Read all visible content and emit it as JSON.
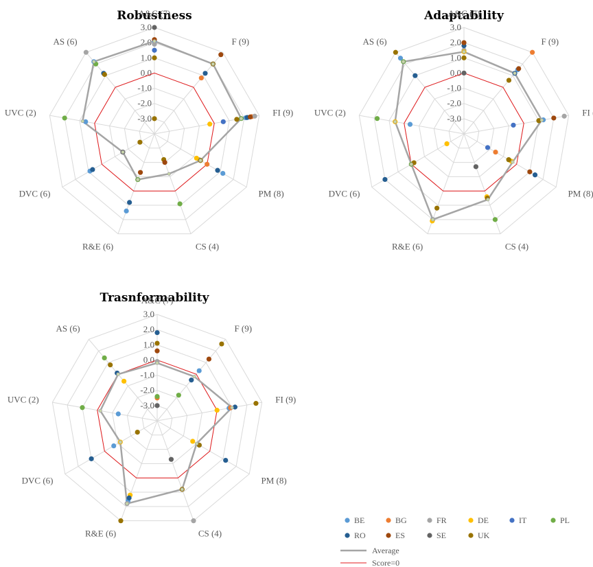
{
  "colors": {
    "BE": "#5b9bd5",
    "BG": "#ed7d31",
    "FR": "#a5a5a5",
    "DE": "#ffc000",
    "IT": "#4472c4",
    "PL": "#70ad47",
    "RO": "#255e91",
    "ES": "#9e480e",
    "SE": "#636363",
    "UK": "#997300",
    "average": "#a5a5a5",
    "score_zero": "#e31a1c",
    "grid": "#d9d9d9"
  },
  "legend": {
    "countries": [
      "BE",
      "BG",
      "FR",
      "DE",
      "IT",
      "PL",
      "RO",
      "ES",
      "SE",
      "UK"
    ],
    "average_label": "Average",
    "score_zero_label": "Score=0"
  },
  "chart_data": [
    {
      "type": "radar",
      "title": "Robustness",
      "axes": [
        "A&C (7)",
        "F (9)",
        "FI (9)",
        "PM (8)",
        "CS (4)",
        "R&E (6)",
        "DVC (6)",
        "UVC (2)",
        "AS (6)"
      ],
      "r_ticks": [
        "3.0",
        "2.0",
        "1.0",
        "0.0",
        "-1.0",
        "-2.0",
        "-3.0"
      ],
      "rlim": [
        -4,
        3
      ],
      "average": [
        2.1,
        2.0,
        1.8,
        -0.5,
        -1.2,
        -0.8,
        -1.6,
        0.8,
        2.2
      ],
      "score_zero": [
        0,
        0,
        0,
        0,
        0,
        0,
        0,
        0,
        0
      ],
      "points": [
        {
          "country": "BE",
          "values": [
            2.1,
            2.0,
            2.1,
            1.2,
            null,
            1.4,
            0.9,
            0.6,
            2.2
          ]
        },
        {
          "country": "BG",
          "values": [
            null,
            0.8,
            2.5,
            0.0,
            null,
            null,
            null,
            null,
            null
          ]
        },
        {
          "country": "FR",
          "values": [
            1.9,
            null,
            2.7,
            -0.6,
            null,
            -0.8,
            null,
            null,
            3.0
          ]
        },
        {
          "country": "DE",
          "values": [
            null,
            null,
            -0.3,
            -0.8,
            null,
            null,
            null,
            null,
            null
          ]
        },
        {
          "country": "IT",
          "values": [
            1.5,
            null,
            0.6,
            null,
            null,
            null,
            null,
            null,
            null
          ]
        },
        {
          "country": "PL",
          "values": [
            null,
            null,
            1.8,
            -0.5,
            0.9,
            -0.8,
            null,
            2.0,
            2.0
          ]
        },
        {
          "country": "RO",
          "values": [
            null,
            1.2,
            2.2,
            0.8,
            null,
            0.8,
            0.7,
            null,
            1.2
          ]
        },
        {
          "country": "ES",
          "values": [
            2.2,
            2.8,
            2.4,
            null,
            null,
            null,
            null,
            null,
            null
          ]
        },
        {
          "country": "SE",
          "values": [
            3.0,
            null,
            null,
            null,
            null,
            null,
            -1.6,
            null,
            null
          ]
        },
        {
          "country": "UK",
          "values": [
            1.0,
            2.0,
            1.5,
            -0.5,
            -2.2,
            null,
            -2.9,
            null,
            1.1
          ]
        },
        {
          "country": "SE",
          "values": [
            null,
            null,
            null,
            null,
            null,
            null,
            null,
            null,
            null
          ]
        },
        {
          "country": "ES",
          "values": [
            null,
            null,
            null,
            null,
            null,
            null,
            null,
            null,
            null
          ]
        },
        {
          "country": "UK",
          "values": [
            -3.0,
            null,
            null,
            null,
            null,
            null,
            null,
            null,
            null
          ]
        },
        {
          "country": "ES",
          "values": [
            null,
            null,
            null,
            null,
            -2.0,
            -1.3,
            null,
            null,
            null
          ]
        }
      ]
    },
    {
      "type": "radar",
      "title": "Adaptability",
      "axes": [
        "A&C (7)",
        "F (9)",
        "FI (9)",
        "PM (8)",
        "CS (4)",
        "R&E (6)",
        "DVC (6)",
        "UVC (2)",
        "AS (6)"
      ],
      "r_ticks": [
        "3.0",
        "2.0",
        "1.0",
        "0.0",
        "-1.0",
        "-2.0",
        "-3.0"
      ],
      "rlim": [
        -4,
        3
      ],
      "average": [
        1.4,
        1.2,
        1.2,
        -0.3,
        0.6,
        2.0,
        0.0,
        0.6,
        2.2
      ],
      "score_zero": [
        0,
        0,
        0,
        0,
        0,
        0,
        0,
        0,
        0
      ],
      "points": [
        {
          "country": "BE",
          "values": [
            null,
            1.5,
            1.3,
            null,
            null,
            2.0,
            null,
            -0.4,
            2.5
          ]
        },
        {
          "country": "BG",
          "values": [
            null,
            3.0,
            null,
            -1.6,
            null,
            null,
            null,
            null,
            null
          ]
        },
        {
          "country": "FR",
          "values": [
            1.5,
            null,
            2.7,
            null,
            null,
            2.0,
            null,
            null,
            null
          ]
        },
        {
          "country": "DE",
          "values": [
            1.4,
            null,
            null,
            -0.4,
            0.4,
            2.1,
            -2.7,
            0.6,
            null
          ]
        },
        {
          "country": "IT",
          "values": [
            null,
            null,
            -0.7,
            -2.2,
            null,
            null,
            null,
            null,
            null
          ]
        },
        {
          "country": "PL",
          "values": [
            null,
            null,
            1.0,
            -0.6,
            2.0,
            null,
            0.0,
            1.8,
            2.2
          ]
        },
        {
          "country": "RO",
          "values": [
            1.8,
            1.2,
            null,
            1.4,
            null,
            null,
            2.0,
            null,
            1.0
          ]
        },
        {
          "country": "ES",
          "values": [
            2.0,
            1.6,
            2.0,
            1.0,
            null,
            null,
            null,
            null,
            null
          ]
        },
        {
          "country": "SE",
          "values": [
            0.0,
            null,
            null,
            null,
            -1.7,
            null,
            null,
            null,
            null
          ]
        },
        {
          "country": "UK",
          "values": [
            1.0,
            0.6,
            1.0,
            -0.6,
            0.5,
            1.2,
            -0.2,
            null,
            3.0
          ]
        }
      ]
    },
    {
      "type": "radar",
      "title": "Trasnformability",
      "axes": [
        "A&C (7)",
        "F (9)",
        "FI (9)",
        "PM (8)",
        "CS (4)",
        "R&E (6)",
        "DVC (6)",
        "UVC (2)",
        "AS (6)"
      ],
      "r_ticks": [
        "3.0",
        "2.0",
        "1.0",
        "0.0",
        "-1.0",
        "-2.0",
        "-3.0"
      ],
      "rlim": [
        -4,
        3
      ],
      "average": [
        -0.2,
        -0.2,
        1.0,
        -1.0,
        0.8,
        1.8,
        -1.2,
        -0.2,
        0.0
      ],
      "score_zero": [
        0,
        0,
        0,
        0,
        0,
        0,
        0,
        0,
        0
      ],
      "points": [
        {
          "country": "BE",
          "values": [
            null,
            0.3,
            0.8,
            -0.8,
            null,
            1.6,
            -0.7,
            -1.4,
            null
          ]
        },
        {
          "country": "BG",
          "values": [
            null,
            null,
            0.9,
            null,
            null,
            null,
            null,
            null,
            null
          ]
        },
        {
          "country": "FR",
          "values": [
            -0.1,
            null,
            null,
            null,
            3.0,
            1.8,
            null,
            null,
            null
          ]
        },
        {
          "country": "DE",
          "values": [
            null,
            null,
            0.0,
            -1.3,
            null,
            1.2,
            -1.2,
            null,
            -0.6
          ]
        },
        {
          "country": "IT",
          "values": [
            null,
            null,
            null,
            null,
            null,
            null,
            null,
            null,
            null
          ]
        },
        {
          "country": "PL",
          "values": [
            null,
            -1.8,
            null,
            null,
            null,
            null,
            null,
            1.0,
            1.4
          ]
        },
        {
          "country": "RO",
          "values": [
            1.8,
            -0.5,
            1.2,
            1.2,
            null,
            1.4,
            1.0,
            null,
            0.1
          ]
        },
        {
          "country": "ES",
          "values": [
            0.6,
            1.3,
            null,
            null,
            null,
            null,
            null,
            null,
            null
          ]
        },
        {
          "country": "SE",
          "values": [
            -3.0,
            null,
            null,
            null,
            -1.3,
            null,
            null,
            null,
            null
          ]
        },
        {
          "country": "UK",
          "values": [
            1.1,
            2.6,
            2.6,
            -0.8,
            0.8,
            3.0,
            -2.5,
            null,
            0.8
          ]
        },
        {
          "country": "ES",
          "values": [
            null,
            null,
            null,
            null,
            null,
            null,
            null,
            null,
            null
          ]
        },
        {
          "country": "BG",
          "values": [
            -2.5,
            null,
            null,
            null,
            null,
            null,
            null,
            null,
            null
          ]
        },
        {
          "country": "PL",
          "values": [
            -2.4,
            null,
            null,
            null,
            null,
            null,
            null,
            null,
            null
          ]
        },
        {
          "country": "UK",
          "values": [
            null,
            null,
            null,
            null,
            null,
            null,
            null,
            null,
            null
          ]
        }
      ]
    }
  ]
}
